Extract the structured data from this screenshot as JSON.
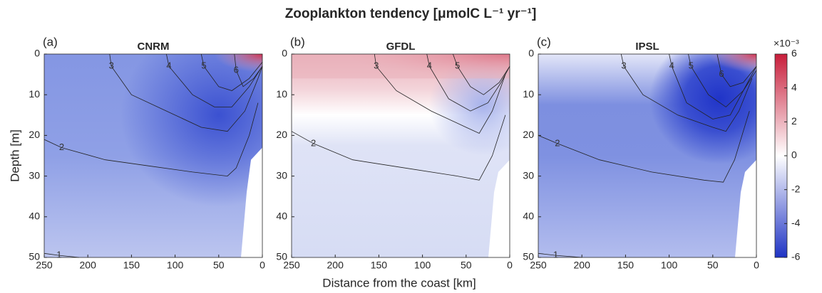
{
  "figure": {
    "title": "Zooplankton tendency [μmolC L⁻¹ yr⁻¹]",
    "xlabel": "Distance from the coast [km]",
    "ylabel": "Depth [m]",
    "colorbar": {
      "label": "×10⁻³",
      "lim": [
        -6,
        6
      ],
      "ticks": [
        -6,
        -4,
        -2,
        0,
        2,
        4,
        6
      ],
      "colors": [
        "#1f33c4",
        "#ffffff",
        "#c81d3a"
      ]
    }
  },
  "chart_data": [
    {
      "type": "contour",
      "label": "(a)",
      "title": "CNRM",
      "xlim": [
        250,
        0
      ],
      "ylim": [
        0,
        50
      ],
      "y_reversed": true,
      "xticks": [
        250,
        200,
        150,
        100,
        50,
        0
      ],
      "yticks": [
        0,
        10,
        20,
        30,
        40,
        50
      ],
      "contours": [
        {
          "level": 6,
          "x": [
            32,
            30,
            22,
            10,
            0
          ],
          "y": [
            0,
            4,
            8,
            6,
            3
          ]
        },
        {
          "level": 5,
          "x": [
            70,
            67,
            50,
            35,
            15,
            0
          ],
          "y": [
            0,
            3,
            8,
            9,
            6,
            2
          ]
        },
        {
          "level": 4,
          "x": [
            110,
            107,
            80,
            55,
            35,
            15,
            0
          ],
          "y": [
            0,
            3,
            10,
            13,
            13,
            8,
            3
          ]
        },
        {
          "level": 3,
          "x": [
            175,
            173,
            150,
            110,
            70,
            40,
            20,
            5,
            0
          ],
          "y": [
            0,
            3,
            10,
            14,
            18,
            19,
            14,
            6,
            3
          ]
        },
        {
          "level": 2,
          "x": [
            250,
            230,
            180,
            130,
            80,
            40,
            30,
            15,
            5
          ],
          "y": [
            21,
            23,
            26,
            27.5,
            29,
            30,
            28,
            20,
            12
          ]
        },
        {
          "level": 1,
          "x": [
            250,
            233,
            210
          ],
          "y": [
            49,
            49.5,
            50
          ]
        }
      ]
    },
    {
      "type": "contour",
      "label": "(b)",
      "title": "GFDL",
      "xlim": [
        250,
        0
      ],
      "ylim": [
        0,
        50
      ],
      "y_reversed": true,
      "xticks": [
        250,
        200,
        150,
        100,
        50,
        0
      ],
      "yticks": [
        0,
        10,
        20,
        30,
        40,
        50
      ],
      "contours": [
        {
          "level": 5,
          "x": [
            65,
            60,
            45,
            30,
            12,
            0
          ],
          "y": [
            0,
            3,
            8,
            10,
            7,
            3
          ]
        },
        {
          "level": 4,
          "x": [
            95,
            92,
            70,
            45,
            25,
            10,
            0
          ],
          "y": [
            0,
            3,
            11,
            14,
            12,
            7,
            3
          ]
        },
        {
          "level": 3,
          "x": [
            155,
            153,
            130,
            90,
            50,
            35,
            20,
            5
          ],
          "y": [
            0,
            3,
            9,
            14,
            18,
            19.5,
            14,
            5
          ]
        },
        {
          "level": 2,
          "x": [
            250,
            225,
            180,
            120,
            60,
            35,
            20,
            5
          ],
          "y": [
            19,
            22,
            26,
            28,
            30,
            31,
            25,
            15
          ]
        }
      ]
    },
    {
      "type": "contour",
      "label": "(c)",
      "title": "IPSL",
      "xlim": [
        250,
        0
      ],
      "ylim": [
        0,
        50
      ],
      "y_reversed": true,
      "xticks": [
        250,
        200,
        150,
        100,
        50,
        0
      ],
      "yticks": [
        0,
        10,
        20,
        30,
        40,
        50
      ],
      "contours": [
        {
          "level": 6,
          "x": [
            45,
            40,
            30,
            15,
            0
          ],
          "y": [
            0,
            5,
            8,
            7,
            3
          ]
        },
        {
          "level": 5,
          "x": [
            78,
            75,
            55,
            35,
            15,
            0
          ],
          "y": [
            0,
            3,
            10,
            13,
            9,
            4
          ]
        },
        {
          "level": 4,
          "x": [
            100,
            97,
            80,
            50,
            30,
            15,
            0
          ],
          "y": [
            0,
            3,
            12,
            16,
            15,
            9,
            3
          ]
        },
        {
          "level": 3,
          "x": [
            155,
            152,
            130,
            90,
            50,
            35,
            20,
            5
          ],
          "y": [
            0,
            3,
            10,
            15,
            18,
            19,
            14,
            6
          ]
        },
        {
          "level": 2,
          "x": [
            250,
            228,
            180,
            120,
            60,
            38,
            25,
            8
          ],
          "y": [
            20,
            22,
            26,
            29,
            31,
            31.5,
            26,
            14
          ]
        },
        {
          "level": 1,
          "x": [
            250,
            230,
            200
          ],
          "y": [
            49,
            49.5,
            50
          ]
        }
      ]
    }
  ]
}
